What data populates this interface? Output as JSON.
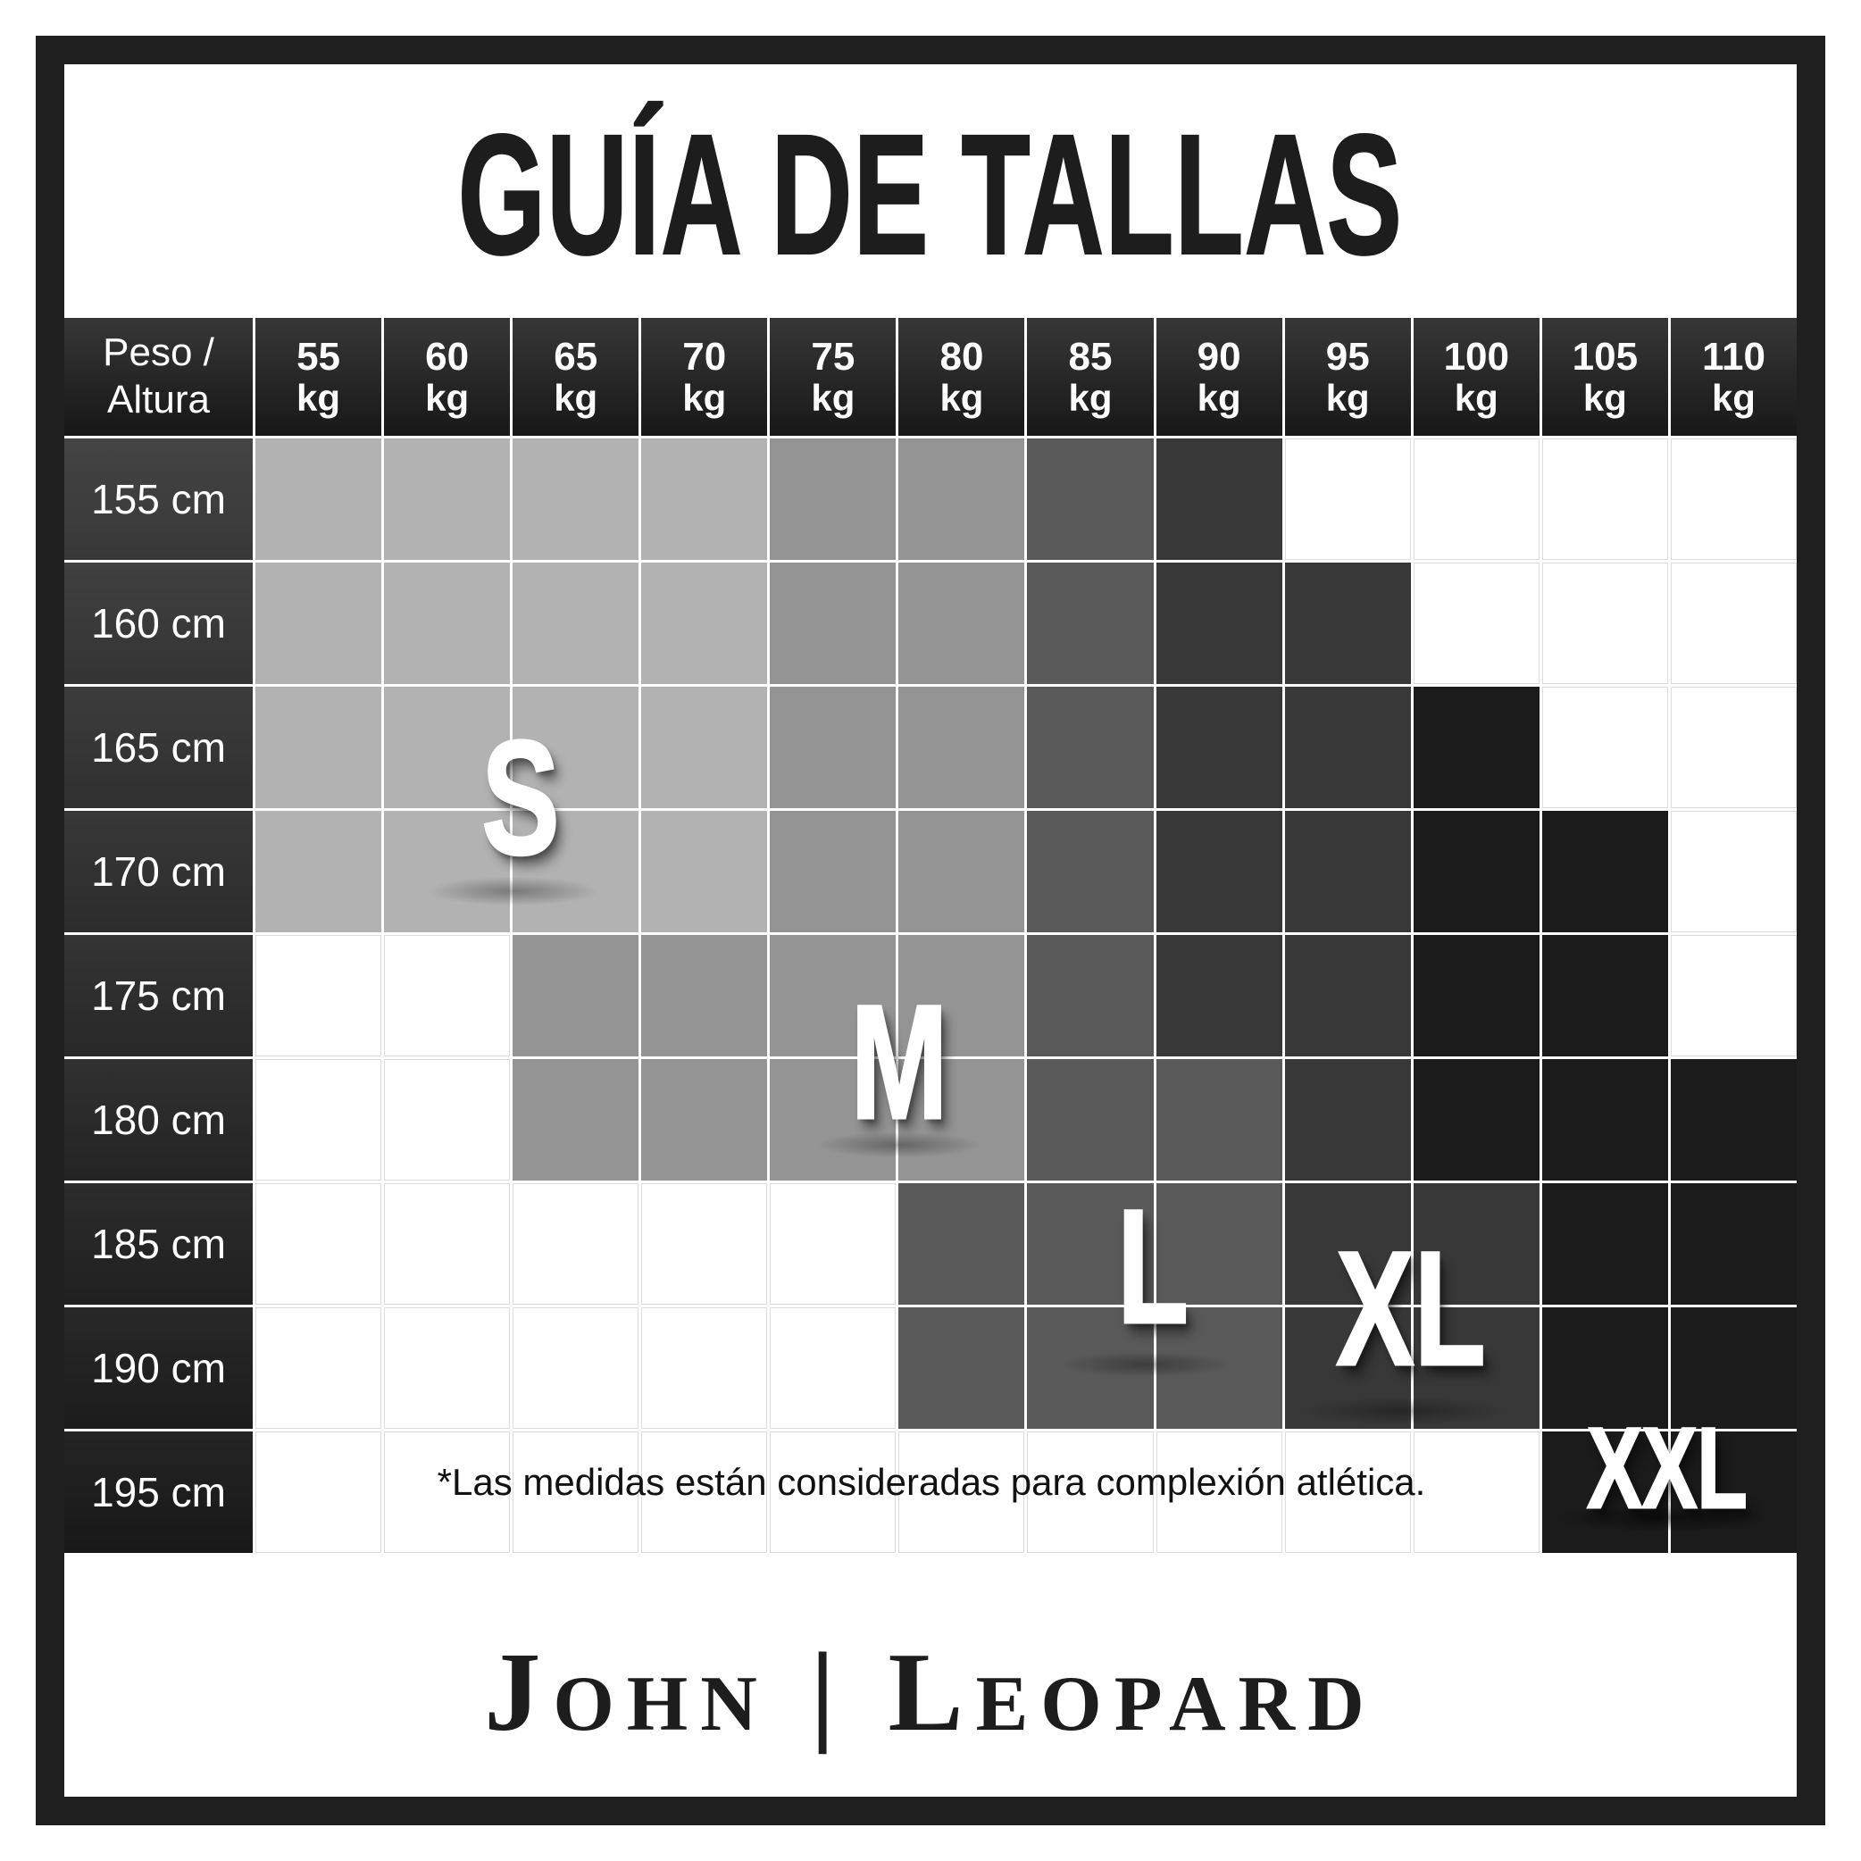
{
  "title": "GUÍA DE TALLAS",
  "footnote": "*Las medidas están consideradas para complexión atlética.",
  "brand": "John | Leopard",
  "sizes": [
    "S",
    "M",
    "L",
    "XL",
    "XXL"
  ],
  "corner_header": {
    "line1": "Peso /",
    "line2": "Altura"
  },
  "weight_unit": "kg",
  "chart_data": {
    "type": "heatmap",
    "title": "GUÍA DE TALLAS",
    "x_categories": [
      "55",
      "60",
      "65",
      "70",
      "75",
      "80",
      "85",
      "90",
      "95",
      "100",
      "105",
      "110"
    ],
    "y_categories": [
      "155 cm",
      "160 cm",
      "165 cm",
      "170 cm",
      "175 cm",
      "180 cm",
      "185 cm",
      "190 cm",
      "195 cm"
    ],
    "cells": [
      [
        "S",
        "S",
        "S",
        "S",
        "M",
        "M",
        "L",
        "XL",
        "",
        "",
        "",
        ""
      ],
      [
        "S",
        "S",
        "S",
        "S",
        "M",
        "M",
        "L",
        "XL",
        "XL",
        "",
        "",
        ""
      ],
      [
        "S",
        "S",
        "S",
        "S",
        "M",
        "M",
        "L",
        "XL",
        "XL",
        "XXL",
        "",
        ""
      ],
      [
        "S",
        "S",
        "S",
        "S",
        "M",
        "M",
        "L",
        "XL",
        "XL",
        "XXL",
        "XXL",
        ""
      ],
      [
        "",
        "",
        "M",
        "M",
        "M",
        "M",
        "L",
        "XL",
        "XL",
        "XXL",
        "XXL",
        ""
      ],
      [
        "",
        "",
        "M",
        "M",
        "M",
        "M",
        "L",
        "L",
        "XL",
        "XXL",
        "XXL",
        "XXL"
      ],
      [
        "",
        "",
        "",
        "",
        "",
        "L",
        "L",
        "L",
        "XL",
        "XL",
        "XXL",
        "XXL"
      ],
      [
        "",
        "",
        "",
        "",
        "",
        "L",
        "L",
        "L",
        "XL",
        "XL",
        "XXL",
        "XXL"
      ],
      [
        "",
        "",
        "",
        "",
        "",
        "",
        "",
        "",
        "",
        "",
        "XXL",
        "XXL"
      ]
    ],
    "legend": {
      "S": "#b2b2b2",
      "M": "#949494",
      "L": "#595959",
      "XL": "#383838",
      "XXL": "#1b1b1b",
      "empty": "#ffffff"
    }
  },
  "colors": {
    "frame": "#1f1f1f",
    "header_bg_top": "#373737",
    "header_bg_bottom": "#181818",
    "text_on_dark": "#ffffff",
    "title_text": "#1d1d1d",
    "gridline_on_white": "#dcdcdc"
  }
}
